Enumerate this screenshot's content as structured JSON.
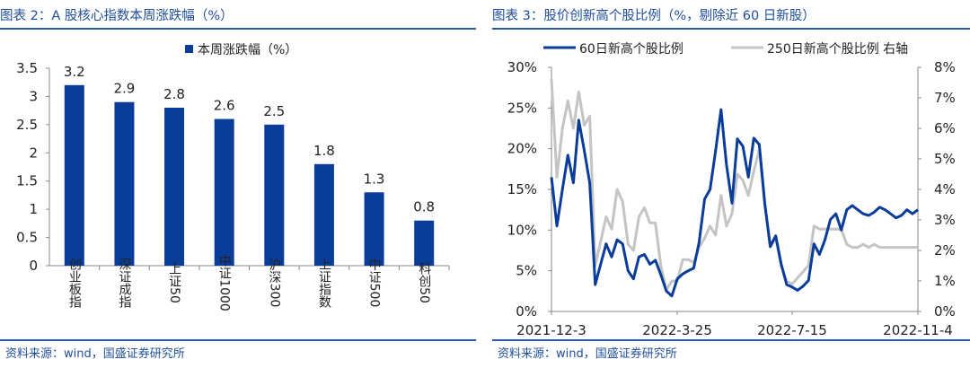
{
  "left": {
    "title": "图表 2：A 股核心指数本周涨跌幅（%）",
    "source": "资料来源：wind，国盛证券研究所"
  },
  "right": {
    "title": "图表 3：股价创新高个股比例（%，剔除近 60 日新股）",
    "source": "资料来源：wind，国盛证券研究所"
  },
  "colors": {
    "primary": "#0a3c9a",
    "secondary": "#c4c4c4",
    "rule": "#2a5aa8",
    "title": "#1f4e9c"
  },
  "chart_data": [
    {
      "type": "bar",
      "title": "",
      "legend": [
        "本周涨跌幅（%）"
      ],
      "legend_position": "top",
      "categories": [
        "创业板指",
        "深证成指",
        "上证50",
        "中证1000",
        "沪深300",
        "上证指数",
        "中证500",
        "科创50"
      ],
      "category_labels": [
        "创业板指",
        "深证成指",
        "上证50",
        "中证1000",
        "沪深300",
        "上证指数",
        "中证500",
        "科创50"
      ],
      "values": [
        3.2,
        2.9,
        2.8,
        2.6,
        2.5,
        1.8,
        1.3,
        0.8
      ],
      "value_labels": [
        "3.2",
        "2.9",
        "2.8",
        "2.6",
        "2.5",
        "1.8",
        "1.3",
        "0.8"
      ],
      "ylim": [
        0,
        3.5
      ],
      "yticks": [
        0,
        0.5,
        1,
        1.5,
        2,
        2.5,
        3,
        3.5
      ],
      "ytick_labels": [
        "0",
        "0.5",
        "1",
        "1.5",
        "2",
        "2.5",
        "3",
        "3.5"
      ],
      "grid": false
    },
    {
      "type": "line",
      "title": "",
      "legend_position": "top",
      "x_count": 68,
      "xtick_index": [
        0,
        23,
        44,
        67
      ],
      "xtick_labels": [
        "2021-12-3",
        "2022-3-25",
        "2022-7-15",
        "2022-11-4"
      ],
      "y_left": {
        "lim": [
          0,
          30
        ],
        "ticks": [
          0,
          5,
          10,
          15,
          20,
          25,
          30
        ],
        "tick_labels": [
          "0%",
          "5%",
          "10%",
          "15%",
          "20%",
          "25%",
          "30%"
        ]
      },
      "y_right": {
        "lim": [
          0,
          8
        ],
        "ticks": [
          0,
          1,
          2,
          3,
          4,
          5,
          6,
          7,
          8
        ],
        "tick_labels": [
          "0%",
          "1%",
          "2%",
          "3%",
          "4%",
          "5%",
          "6%",
          "7%",
          "8%"
        ]
      },
      "grid": false,
      "series": [
        {
          "name": "60日新高个股比例",
          "axis": "left",
          "values": [
            16.5,
            10.5,
            15.0,
            19.2,
            15.8,
            23.5,
            19.8,
            15.8,
            3.3,
            5.8,
            8.3,
            6.7,
            8.8,
            8.3,
            5.0,
            4.0,
            6.7,
            7.0,
            5.8,
            6.3,
            4.5,
            2.5,
            1.9,
            4.0,
            4.6,
            5.0,
            5.3,
            8.5,
            13.8,
            15.0,
            19.7,
            24.8,
            18.0,
            13.3,
            21.2,
            20.3,
            16.5,
            21.3,
            20.5,
            13.3,
            8.0,
            9.3,
            5.8,
            3.3,
            3.0,
            2.6,
            3.1,
            3.8,
            8.3,
            7.0,
            8.8,
            11.3,
            12.0,
            10.0,
            12.5,
            13.0,
            12.5,
            12.0,
            11.8,
            12.2,
            12.8,
            12.5,
            12.0,
            11.5,
            11.8,
            12.5,
            12.0,
            12.5
          ]
        },
        {
          "name": "250日新高个股比例 右轴",
          "axis": "right",
          "values": [
            7.6,
            4.4,
            6.0,
            6.9,
            6.0,
            7.2,
            6.1,
            6.4,
            1.5,
            2.3,
            3.1,
            2.7,
            4.0,
            3.6,
            2.2,
            2.0,
            3.1,
            3.4,
            2.9,
            2.9,
            1.5,
            0.7,
            1.0,
            1.0,
            1.7,
            1.7,
            1.6,
            2.1,
            2.4,
            2.8,
            2.5,
            3.8,
            2.8,
            3.2,
            4.5,
            4.3,
            3.8,
            4.6,
            5.3,
            3.5,
            2.1,
            2.4,
            1.5,
            1.0,
            0.9,
            1.1,
            1.3,
            1.5,
            2.8,
            2.7,
            2.7,
            2.7,
            2.7,
            2.7,
            2.2,
            2.1,
            2.1,
            2.2,
            2.1,
            2.2,
            2.1,
            2.1,
            2.1,
            2.1,
            2.1,
            2.1,
            2.1,
            2.1
          ]
        }
      ]
    }
  ]
}
